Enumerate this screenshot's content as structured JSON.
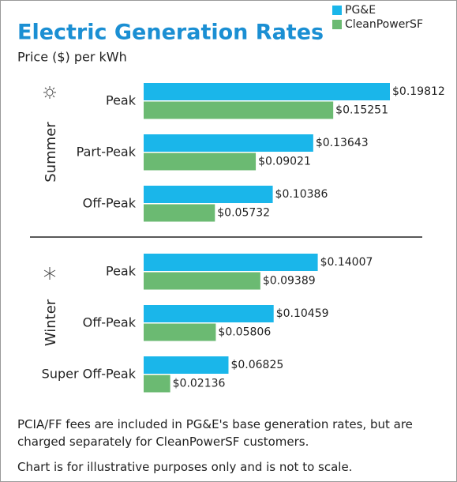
{
  "chart_data": {
    "type": "bar",
    "title": "Electric Generation Rates",
    "subtitle": "Price ($) per kWh",
    "series": [
      {
        "name": "PG&E",
        "color": "#1ab6ea"
      },
      {
        "name": "CleanPowerSF",
        "color": "#6bba72"
      }
    ],
    "groups": [
      {
        "name": "Summer",
        "categories": [
          "Peak",
          "Part-Peak",
          "Off-Peak"
        ],
        "values": [
          [
            0.19812,
            0.13643,
            0.10386
          ],
          [
            0.15251,
            0.09021,
            0.05732
          ]
        ],
        "value_labels": [
          [
            "$0.19812",
            "$0.13643",
            "$0.10386"
          ],
          [
            "$0.15251",
            "$0.09021",
            "$0.05732"
          ]
        ]
      },
      {
        "name": "Winter",
        "categories": [
          "Peak",
          "Off-Peak",
          "Super Off-Peak"
        ],
        "values": [
          [
            0.14007,
            0.10459,
            0.06825
          ],
          [
            0.09389,
            0.05806,
            0.02136
          ]
        ],
        "value_labels": [
          [
            "$0.14007",
            "$0.10459",
            "$0.06825"
          ],
          [
            "$0.09389",
            "$0.05806",
            "$0.02136"
          ]
        ]
      }
    ]
  },
  "notes": [
    "PCIA/FF fees are included in PG&E's base generation rates, but are charged separately for CleanPowerSF customers.",
    "Chart is for illustrative purposes only and is not to scale."
  ]
}
